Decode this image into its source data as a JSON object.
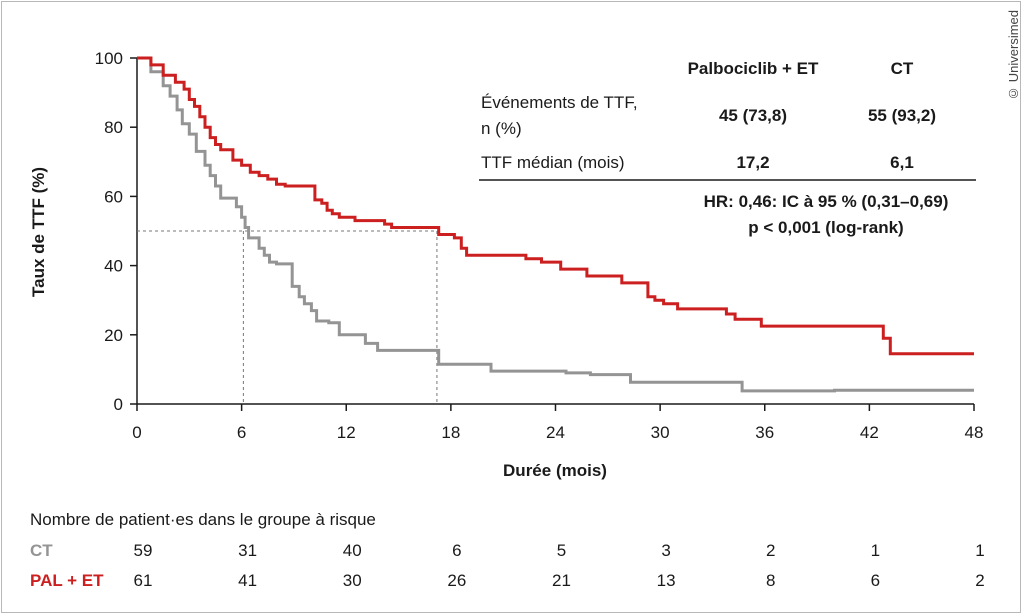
{
  "copyright": "© Universimed",
  "chart_data": {
    "type": "line",
    "xlabel": "Durée (mois)",
    "ylabel": "Taux de TTF (%)",
    "xlim": [
      0,
      48
    ],
    "ylim": [
      0,
      100
    ],
    "xticks": [
      0,
      6,
      12,
      18,
      24,
      30,
      36,
      42,
      48
    ],
    "yticks": [
      0,
      20,
      40,
      60,
      80,
      100
    ],
    "x_tick_labels": [
      "0",
      "6",
      "12",
      "18",
      "24",
      "30",
      "36",
      "42",
      "48"
    ],
    "y_tick_labels": [
      "0",
      "20",
      "40",
      "60",
      "80",
      "100"
    ],
    "grid": false,
    "series": [
      {
        "name": "Palbociclib + ET",
        "color": "#cc1f1f",
        "step": true,
        "points": [
          [
            0,
            100
          ],
          [
            0.8,
            100
          ],
          [
            0.8,
            98
          ],
          [
            1.5,
            98
          ],
          [
            1.5,
            95
          ],
          [
            2.2,
            95
          ],
          [
            2.2,
            93
          ],
          [
            2.7,
            93
          ],
          [
            2.7,
            91
          ],
          [
            3.0,
            91
          ],
          [
            3.0,
            88
          ],
          [
            3.3,
            88
          ],
          [
            3.3,
            86
          ],
          [
            3.6,
            86
          ],
          [
            3.6,
            83
          ],
          [
            3.9,
            83
          ],
          [
            3.9,
            80
          ],
          [
            4.2,
            80
          ],
          [
            4.2,
            77
          ],
          [
            4.5,
            77
          ],
          [
            4.5,
            75
          ],
          [
            4.8,
            75
          ],
          [
            4.8,
            73.5
          ],
          [
            5.3,
            73.5
          ],
          [
            5.3,
            73.5
          ],
          [
            5.5,
            73.5
          ],
          [
            5.5,
            70.5
          ],
          [
            6.0,
            70.5
          ],
          [
            6.0,
            69
          ],
          [
            6.5,
            69
          ],
          [
            6.5,
            67
          ],
          [
            7.0,
            67
          ],
          [
            7.0,
            66
          ],
          [
            7.5,
            66
          ],
          [
            7.5,
            65
          ],
          [
            8.0,
            65
          ],
          [
            8.0,
            63.5
          ],
          [
            8.5,
            63.5
          ],
          [
            8.5,
            63
          ],
          [
            10.2,
            63
          ],
          [
            10.2,
            59
          ],
          [
            10.6,
            59
          ],
          [
            10.6,
            58
          ],
          [
            10.9,
            58
          ],
          [
            10.9,
            56
          ],
          [
            11.2,
            56
          ],
          [
            11.2,
            55
          ],
          [
            11.6,
            55
          ],
          [
            11.6,
            54
          ],
          [
            12.5,
            54
          ],
          [
            12.5,
            53
          ],
          [
            14.2,
            53
          ],
          [
            14.2,
            52
          ],
          [
            14.6,
            52
          ],
          [
            14.6,
            51
          ],
          [
            17.3,
            51
          ],
          [
            17.3,
            49
          ],
          [
            18.2,
            49
          ],
          [
            18.2,
            48
          ],
          [
            18.6,
            48
          ],
          [
            18.6,
            45
          ],
          [
            18.9,
            45
          ],
          [
            18.9,
            43
          ],
          [
            22.3,
            43
          ],
          [
            22.3,
            42
          ],
          [
            23.2,
            42
          ],
          [
            23.2,
            41
          ],
          [
            24.3,
            41
          ],
          [
            24.3,
            39
          ],
          [
            25.8,
            39
          ],
          [
            25.8,
            37
          ],
          [
            27.8,
            37
          ],
          [
            27.8,
            35
          ],
          [
            29.3,
            35
          ],
          [
            29.3,
            31
          ],
          [
            29.7,
            31
          ],
          [
            29.7,
            30
          ],
          [
            30.2,
            30
          ],
          [
            30.2,
            29
          ],
          [
            31.0,
            29
          ],
          [
            31.0,
            27.5
          ],
          [
            33.8,
            27.5
          ],
          [
            33.8,
            26
          ],
          [
            34.3,
            26
          ],
          [
            34.3,
            24.5
          ],
          [
            35.8,
            24.5
          ],
          [
            35.8,
            22.5
          ],
          [
            42.8,
            22.5
          ],
          [
            42.8,
            19
          ],
          [
            43.2,
            19
          ],
          [
            43.2,
            14.5
          ],
          [
            48,
            14.5
          ]
        ]
      },
      {
        "name": "CT",
        "color": "#949494",
        "step": true,
        "points": [
          [
            0,
            100
          ],
          [
            0.8,
            100
          ],
          [
            0.8,
            96
          ],
          [
            1.5,
            96
          ],
          [
            1.5,
            92
          ],
          [
            1.9,
            92
          ],
          [
            1.9,
            89
          ],
          [
            2.3,
            89
          ],
          [
            2.3,
            85
          ],
          [
            2.6,
            85
          ],
          [
            2.6,
            81
          ],
          [
            3.0,
            81
          ],
          [
            3.0,
            78
          ],
          [
            3.4,
            78
          ],
          [
            3.4,
            73
          ],
          [
            3.9,
            73
          ],
          [
            3.9,
            69
          ],
          [
            4.2,
            69
          ],
          [
            4.2,
            66
          ],
          [
            4.5,
            66
          ],
          [
            4.5,
            63
          ],
          [
            4.8,
            63
          ],
          [
            4.8,
            59.5
          ],
          [
            5.7,
            59.5
          ],
          [
            5.7,
            57
          ],
          [
            6.0,
            57
          ],
          [
            6.0,
            54
          ],
          [
            6.2,
            54
          ],
          [
            6.2,
            51
          ],
          [
            6.4,
            51
          ],
          [
            6.4,
            48
          ],
          [
            7.0,
            48
          ],
          [
            7.0,
            45
          ],
          [
            7.3,
            45
          ],
          [
            7.3,
            43
          ],
          [
            7.6,
            43
          ],
          [
            7.6,
            41
          ],
          [
            8.0,
            41
          ],
          [
            8.0,
            40.5
          ],
          [
            8.9,
            40.5
          ],
          [
            8.9,
            34
          ],
          [
            9.3,
            34
          ],
          [
            9.3,
            31
          ],
          [
            9.6,
            31
          ],
          [
            9.6,
            29
          ],
          [
            10.0,
            29
          ],
          [
            10.0,
            27
          ],
          [
            10.3,
            27
          ],
          [
            10.3,
            24
          ],
          [
            11.0,
            24
          ],
          [
            11.0,
            23.5
          ],
          [
            11.6,
            23.5
          ],
          [
            11.6,
            20
          ],
          [
            13.1,
            20
          ],
          [
            13.1,
            17.5
          ],
          [
            13.8,
            17.5
          ],
          [
            13.8,
            15.5
          ],
          [
            17.3,
            15.5
          ],
          [
            17.3,
            11.5
          ],
          [
            20.3,
            11.5
          ],
          [
            20.3,
            9.5
          ],
          [
            24.6,
            9.5
          ],
          [
            24.6,
            9
          ],
          [
            26.0,
            9
          ],
          [
            26.0,
            8.5
          ],
          [
            28.3,
            8.5
          ],
          [
            28.3,
            6.3
          ],
          [
            34.7,
            6.3
          ],
          [
            34.7,
            3.8
          ],
          [
            40.0,
            3.8
          ],
          [
            40.0,
            4.0
          ],
          [
            48,
            4.0
          ]
        ]
      }
    ],
    "median_guides": {
      "y": 50,
      "x": [
        6.1,
        17.2
      ]
    },
    "inset_table": {
      "col_headers": [
        "Palbociclib + ET",
        "CT"
      ],
      "row_event_label_1": "Événements de TTF,",
      "row_event_label_2": "n (%)",
      "row_event_values": [
        "45 (73,8)",
        "55 (93,2)"
      ],
      "row_median_label": "TTF médian (mois)",
      "row_median_values": [
        "17,2",
        "6,1"
      ],
      "hr_line": "HR: 0,46: IC à 95 % (0,31–0,69)",
      "p_line": "p < 0,001 (log-rank)"
    },
    "at_risk": {
      "title": "Nombre de patient·es dans le groupe à risque",
      "rows": [
        {
          "label": "CT",
          "color": "#949494",
          "values": [
            "59",
            "31",
            "40",
            "6",
            "5",
            "3",
            "2",
            "1",
            "1"
          ]
        },
        {
          "label": "PAL + ET",
          "color": "#cc1f1f",
          "values": [
            "61",
            "41",
            "30",
            "26",
            "21",
            "13",
            "8",
            "6",
            "2"
          ]
        }
      ]
    }
  }
}
